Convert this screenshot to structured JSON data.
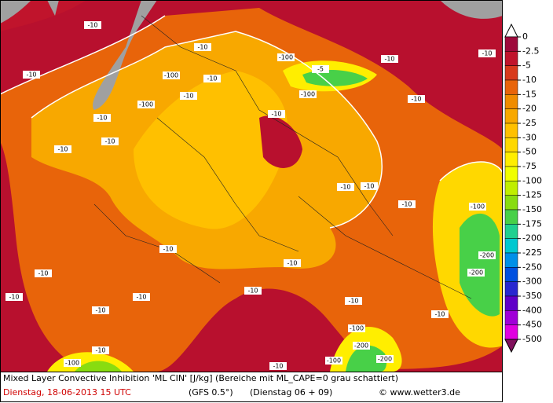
{
  "caption": {
    "line1": "Mixed Layer Convective Inhibition 'ML CIN' [J/kg] (Bereiche mit ML_CAPE=0 grau schattiert)",
    "date": "Dienstag, 18-06-2013  15 UTC",
    "model": "(GFS 0.5°)",
    "run": "(Dienstag 06 + 09)",
    "credit": "© www.wetter3.de"
  },
  "legend": {
    "levels": [
      0,
      -2.5,
      -5,
      -10,
      -15,
      -20,
      -25,
      -30,
      -50,
      -75,
      -100,
      -125,
      -150,
      -175,
      -200,
      -225,
      -250,
      -300,
      -350,
      -400,
      -450,
      -500
    ],
    "colors": [
      "#ffffff",
      "#9e0a3c",
      "#c0142c",
      "#d83a1c",
      "#e8640a",
      "#f08c00",
      "#f8a800",
      "#ffc000",
      "#ffd800",
      "#ffee00",
      "#f0ff00",
      "#c0ee00",
      "#88dc10",
      "#48d048",
      "#20d090",
      "#00c8d0",
      "#0090e8",
      "#0050e0",
      "#2828d0",
      "#6000c8",
      "#a000d8",
      "#e000e0",
      "#80105c"
    ]
  },
  "contour_labels": [
    "-10",
    "-10",
    "-10",
    "-10",
    "-10",
    "-100",
    "-5",
    "-100",
    "-10",
    "-10",
    "-100",
    "-10",
    "-100",
    "-10",
    "-10",
    "-10",
    "-10",
    "-10",
    "-10",
    "-10",
    "-100",
    "-10",
    "-10",
    "-200",
    "-200",
    "-10",
    "-10",
    "-10",
    "-10",
    "-10",
    "-10",
    "-100",
    "-200",
    "-10",
    "-100",
    "-10",
    "-10",
    "-100",
    "-200"
  ]
}
